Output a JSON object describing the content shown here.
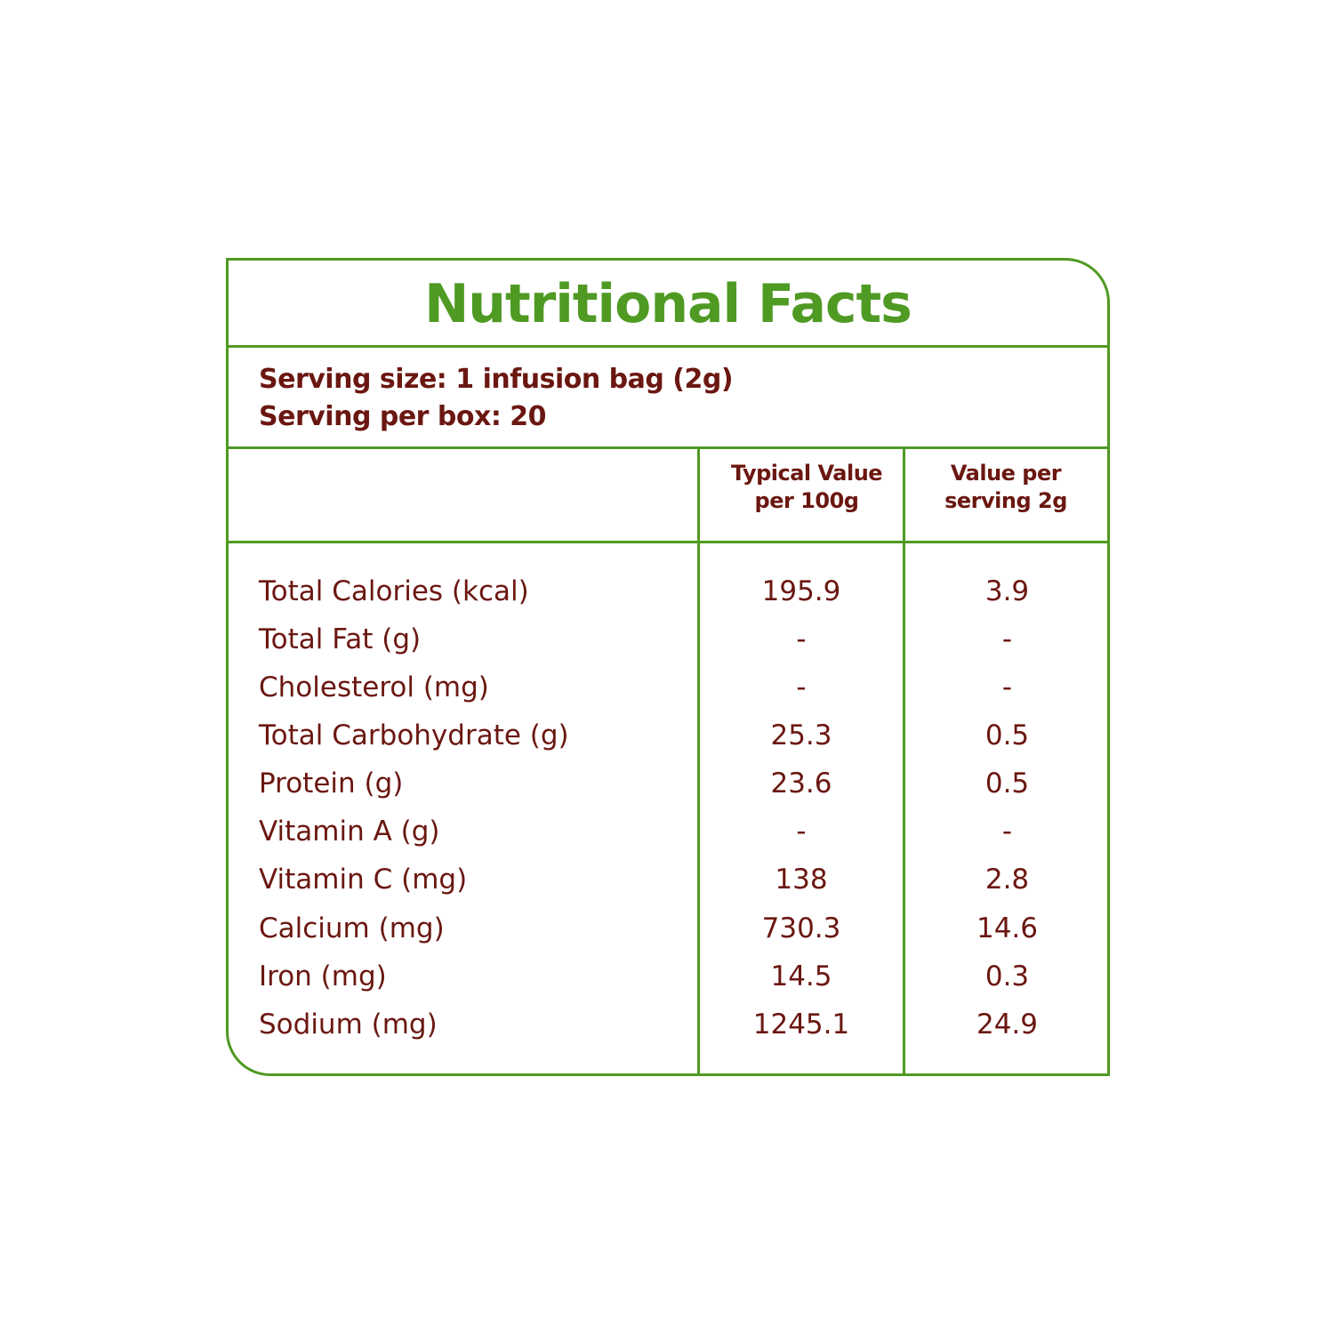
{
  "title": "Nutritional Facts",
  "serving": {
    "size": "Serving size: 1 infusion bag (2g)",
    "per_box": "Serving per box: 20"
  },
  "columns": {
    "per100_line1": "Typical Value",
    "per100_line2": "per 100g",
    "serving_line1": "Value per",
    "serving_line2": "serving 2g"
  },
  "rows": [
    {
      "name": "Total Calories (kcal)",
      "per100": "195.9",
      "serving": "3.9"
    },
    {
      "name": "Total Fat (g)",
      "per100": "-",
      "serving": "-"
    },
    {
      "name": "Cholesterol (mg)",
      "per100": "-",
      "serving": "-"
    },
    {
      "name": "Total Carbohydrate (g)",
      "per100": "25.3",
      "serving": "0.5"
    },
    {
      "name": "Protein (g)",
      "per100": "23.6",
      "serving": "0.5"
    },
    {
      "name": "Vitamin A (g)",
      "per100": "-",
      "serving": "-"
    },
    {
      "name": "Vitamin C (mg)",
      "per100": "138",
      "serving": "2.8"
    },
    {
      "name": "Calcium (mg)",
      "per100": "730.3",
      "serving": "14.6"
    },
    {
      "name": "Iron (mg)",
      "per100": "14.5",
      "serving": "0.3"
    },
    {
      "name": "Sodium (mg)",
      "per100": "1245.1",
      "serving": "24.9"
    }
  ],
  "colors": {
    "border": "#4f9a23",
    "text": "#6b1711"
  }
}
